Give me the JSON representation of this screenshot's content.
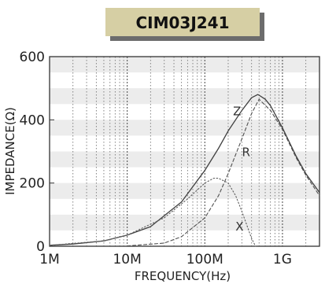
{
  "chart_data": {
    "type": "line",
    "title": "CIM03J241",
    "xlabel": "FREQUENCY(Hz)",
    "ylabel": "IMPEDANCE(Ω)",
    "x_scale": "log",
    "xlim": [
      1000000,
      3000000000
    ],
    "ylim": [
      0,
      600
    ],
    "x_ticks": [
      {
        "value": 1000000,
        "label": "1M"
      },
      {
        "value": 10000000,
        "label": "10M"
      },
      {
        "value": 100000000,
        "label": "100M"
      },
      {
        "value": 1000000000,
        "label": "1G"
      }
    ],
    "y_ticks": [
      {
        "value": 0,
        "label": "0"
      },
      {
        "value": 200,
        "label": "200"
      },
      {
        "value": 400,
        "label": "400"
      },
      {
        "value": 600,
        "label": "600"
      }
    ],
    "grid": "vertical dotted lines at log-decade subdivisions; shaded horizontal bands",
    "series": [
      {
        "name": "Z",
        "style": "solid",
        "x": [
          1000000,
          2000000,
          5000000,
          10000000,
          20000000,
          50000000,
          100000000,
          150000000,
          200000000,
          300000000,
          400000000,
          480000000,
          500000000,
          600000000,
          700000000,
          1000000000,
          1500000000,
          2000000000,
          3000000000
        ],
        "y": [
          3,
          7,
          17,
          35,
          62,
          140,
          240,
          310,
          365,
          430,
          470,
          480,
          478,
          465,
          445,
          375,
          285,
          230,
          170
        ]
      },
      {
        "name": "R",
        "style": "dashed",
        "x": [
          10000000,
          30000000,
          50000000,
          100000000,
          150000000,
          200000000,
          300000000,
          400000000,
          500000000,
          700000000,
          1000000000,
          1500000000,
          2000000000,
          3000000000
        ],
        "y": [
          1,
          10,
          30,
          90,
          160,
          230,
          340,
          420,
          465,
          430,
          370,
          280,
          225,
          160
        ]
      },
      {
        "name": "X",
        "style": "dotted",
        "x": [
          1000000,
          5000000,
          10000000,
          30000000,
          60000000,
          100000000,
          130000000,
          150000000,
          200000000,
          250000000,
          300000000,
          400000000,
          450000000
        ],
        "y": [
          3,
          17,
          35,
          90,
          150,
          200,
          215,
          215,
          200,
          160,
          110,
          25,
          0
        ]
      }
    ],
    "series_labels": [
      {
        "text": "Z",
        "x": 260000000,
        "y": 415
      },
      {
        "text": "R",
        "x": 340000000,
        "y": 285
      },
      {
        "text": "X",
        "x": 280000000,
        "y": 50
      }
    ],
    "colors": {
      "Z": "#404040",
      "R": "#505050",
      "X": "#606060",
      "band": "#ececec",
      "title_box": "#d6cfa4",
      "title_shadow": "#6c6c6c"
    }
  }
}
